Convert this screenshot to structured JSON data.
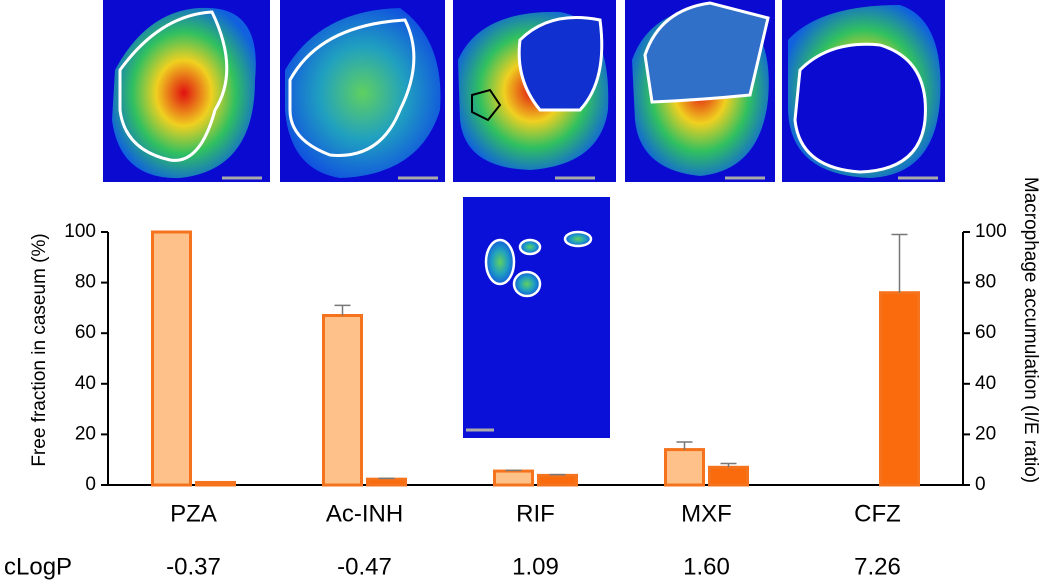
{
  "chart_data": {
    "type": "bar",
    "categories": [
      "PZA",
      "Ac-INH",
      "RIF",
      "MXF",
      "CFZ"
    ],
    "ylabel": "Free fraction in caseum (%)",
    "y2label": "Macrophage accumulation (I/E ratio)",
    "ylim": [
      0,
      100
    ],
    "yticks": [
      0,
      20,
      40,
      60,
      80,
      100
    ],
    "y2lim": [
      0,
      100
    ],
    "y2ticks": [
      0,
      20,
      40,
      60,
      80,
      100
    ],
    "series": [
      {
        "color": "#fdc189",
        "edge": "#f4731c",
        "values": [
          100,
          67,
          5.5,
          14,
          null
        ],
        "errors": [
          null,
          4,
          0.3,
          3,
          null
        ]
      },
      {
        "color": "#f96b0c",
        "edge": "#f4731c",
        "axis": "y2",
        "values": [
          1,
          2.3,
          3.8,
          7,
          76
        ],
        "errors": [
          null,
          0.3,
          0.3,
          1.5,
          23
        ]
      }
    ],
    "row_label": "cLogP",
    "row_values": [
      "-0.37",
      "-0.47",
      "1.09",
      "1.60",
      "7.26"
    ]
  }
}
